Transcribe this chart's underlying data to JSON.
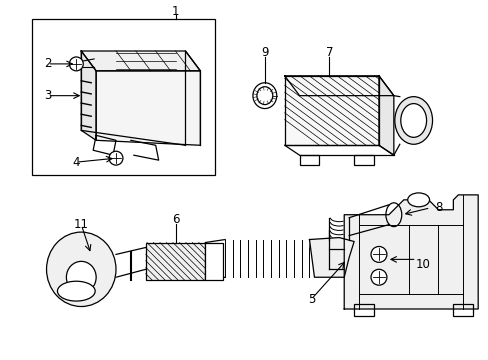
{
  "background_color": "#ffffff",
  "line_color": "#000000",
  "figure_width": 4.89,
  "figure_height": 3.6,
  "dpi": 100,
  "line_width": 0.9,
  "gray": "#aaaaaa",
  "light_gray": "#dddddd"
}
